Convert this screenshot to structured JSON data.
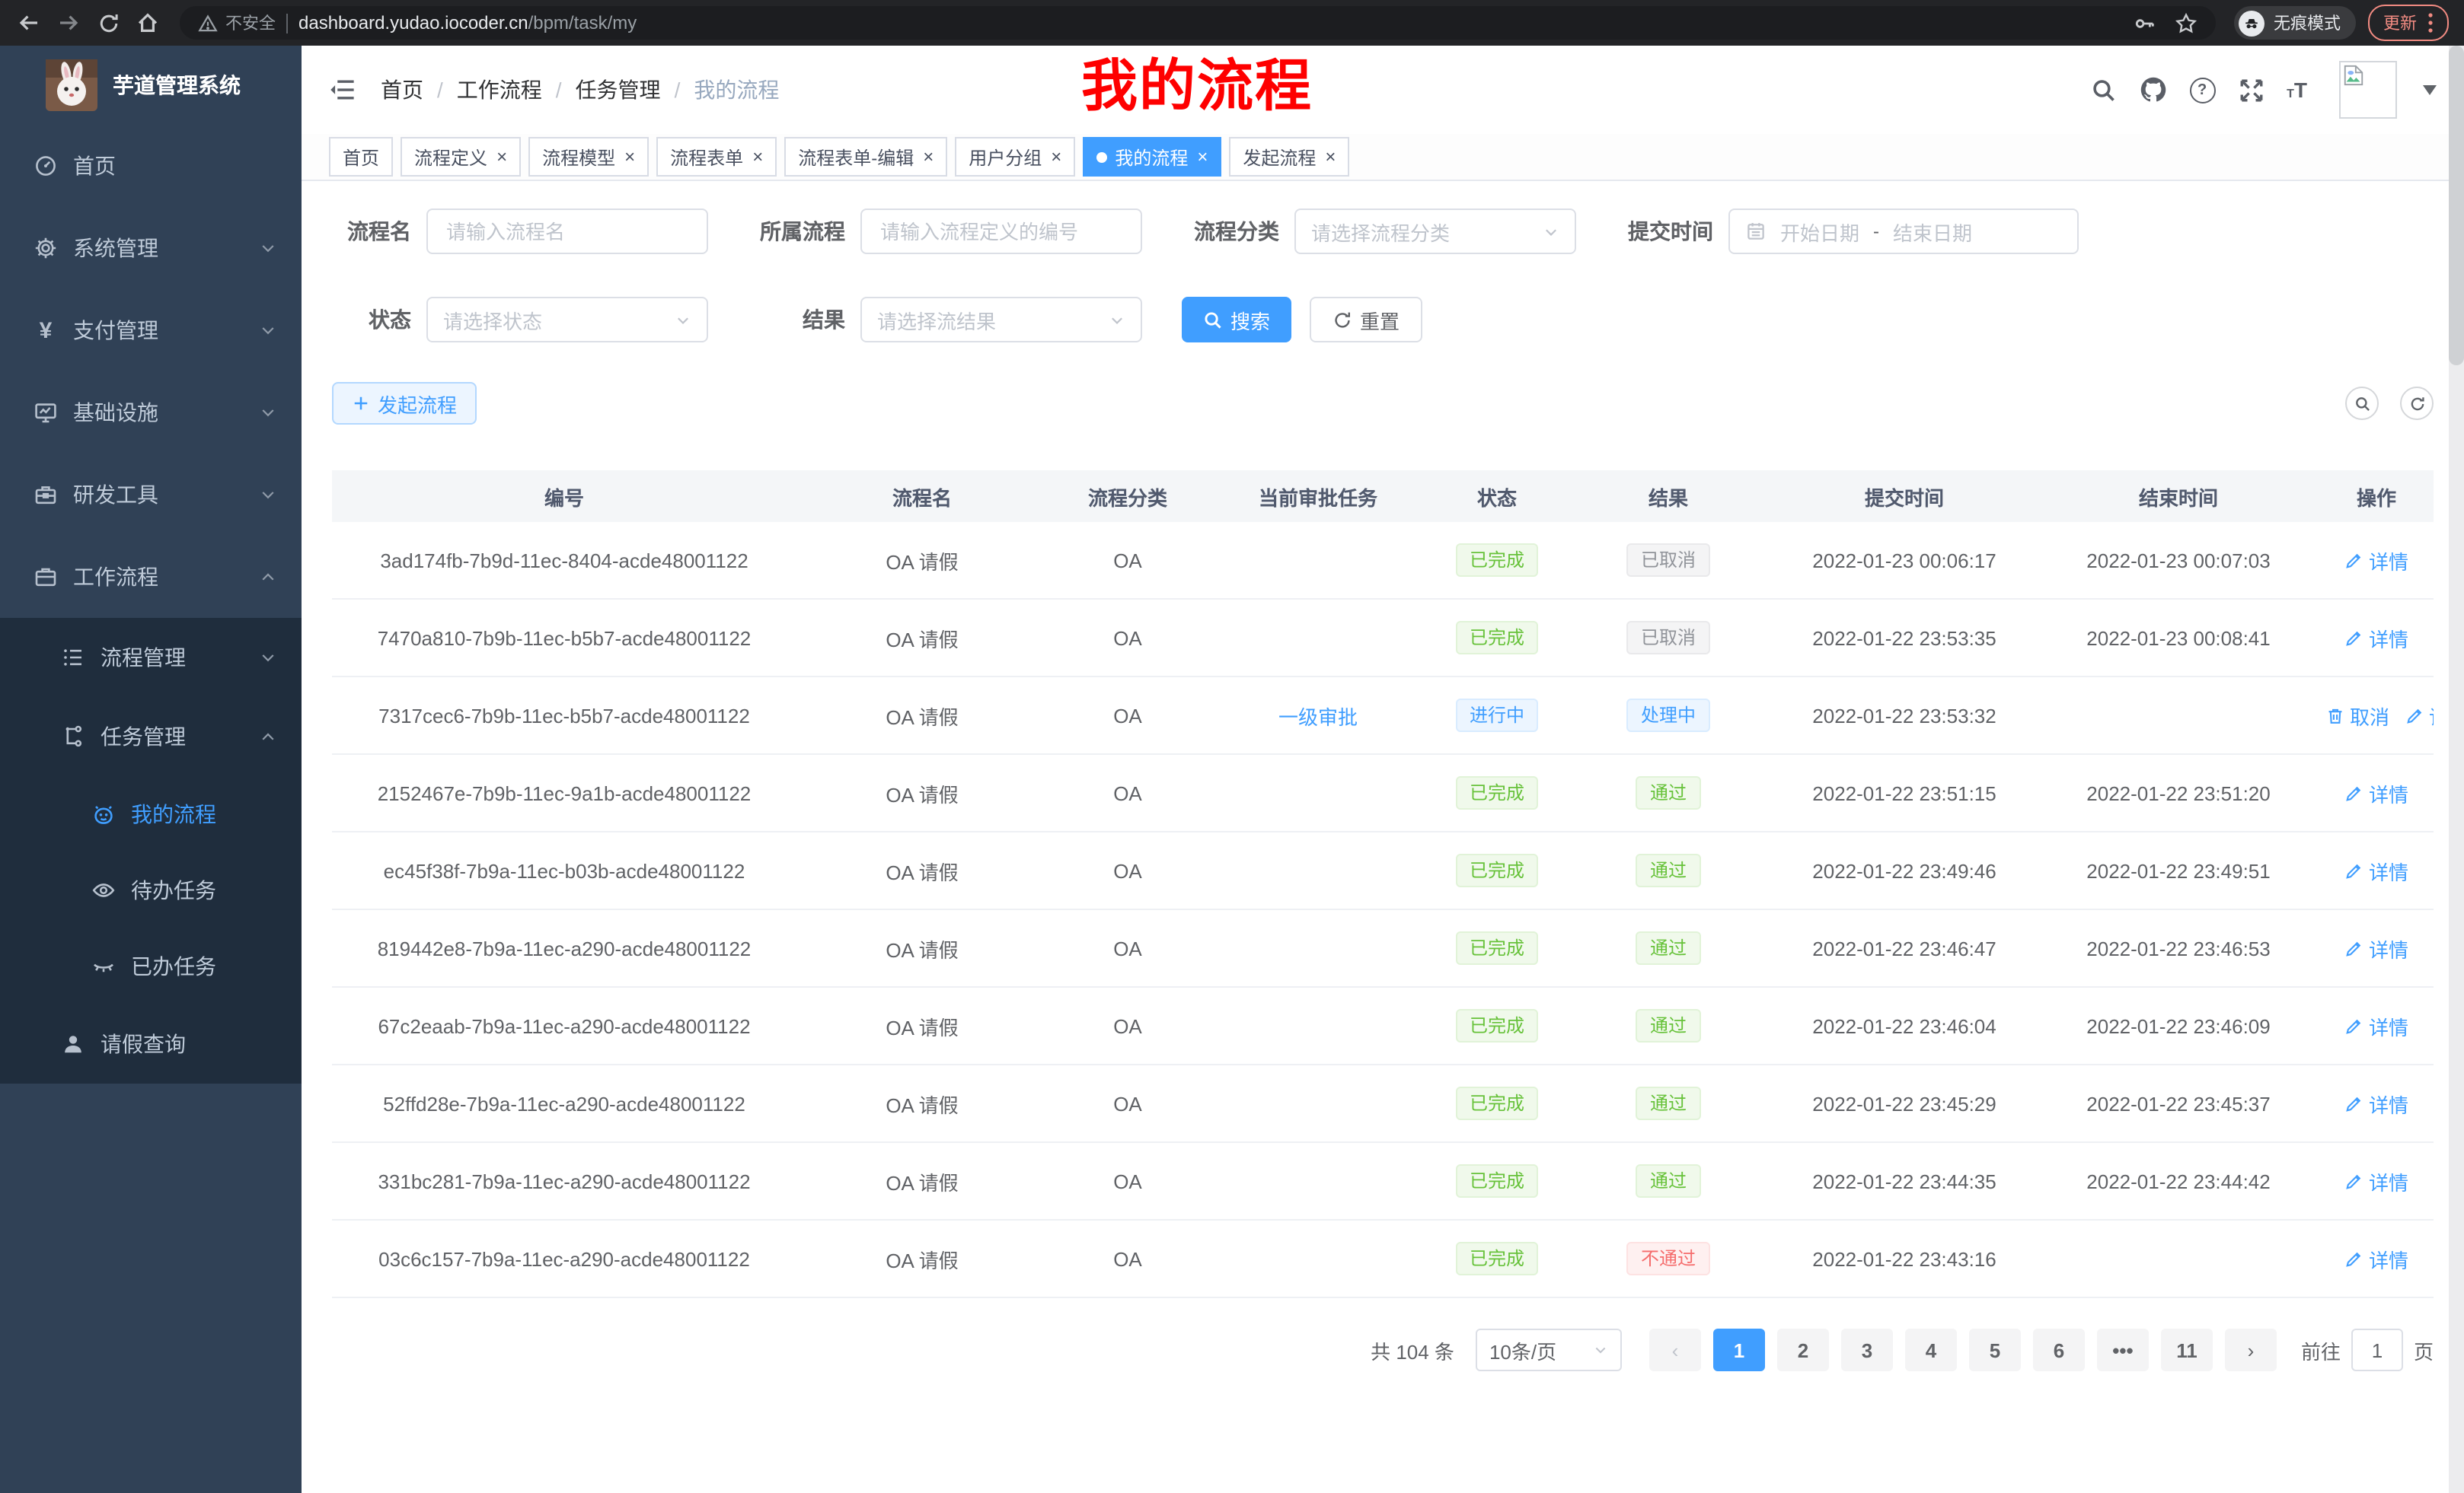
{
  "browser": {
    "security_label": "不安全",
    "url_domain": "dashboard.yudao.iocoder.cn",
    "url_path": "/bpm/task/my",
    "incognito_label": "无痕模式",
    "update_label": "更新"
  },
  "sidebar": {
    "logo_title": "芋道管理系统",
    "menu": [
      {
        "label": "首页",
        "icon": "dashboard"
      },
      {
        "label": "系统管理",
        "icon": "gear",
        "chevron": "down"
      },
      {
        "label": "支付管理",
        "icon": "yen",
        "chevron": "down"
      },
      {
        "label": "基础设施",
        "icon": "monitor",
        "chevron": "down"
      },
      {
        "label": "研发工具",
        "icon": "toolbox",
        "chevron": "down"
      },
      {
        "label": "工作流程",
        "icon": "briefcase",
        "chevron": "up",
        "children": [
          {
            "label": "流程管理",
            "icon": "list",
            "chevron": "down"
          },
          {
            "label": "任务管理",
            "icon": "flow",
            "chevron": "up",
            "children": [
              {
                "label": "我的流程",
                "icon": "robot",
                "active": true
              },
              {
                "label": "待办任务",
                "icon": "eye"
              },
              {
                "label": "已办任务",
                "icon": "eye-closed"
              }
            ]
          },
          {
            "label": "请假查询",
            "icon": "user"
          }
        ]
      }
    ]
  },
  "navbar": {
    "breadcrumb": [
      "首页",
      "工作流程",
      "任务管理",
      "我的流程"
    ],
    "annotation": "我的流程"
  },
  "tabs": [
    {
      "label": "首页",
      "closable": false,
      "active": false
    },
    {
      "label": "流程定义",
      "closable": true,
      "active": false
    },
    {
      "label": "流程模型",
      "closable": true,
      "active": false
    },
    {
      "label": "流程表单",
      "closable": true,
      "active": false
    },
    {
      "label": "流程表单-编辑",
      "closable": true,
      "active": false
    },
    {
      "label": "用户分组",
      "closable": true,
      "active": false
    },
    {
      "label": "我的流程",
      "closable": true,
      "active": true
    },
    {
      "label": "发起流程",
      "closable": true,
      "active": false
    }
  ],
  "filters": {
    "name": {
      "label": "流程名",
      "placeholder": "请输入流程名"
    },
    "definition": {
      "label": "所属流程",
      "placeholder": "请输入流程定义的编号"
    },
    "category": {
      "label": "流程分类",
      "placeholder": "请选择流程分类"
    },
    "submit_time": {
      "label": "提交时间",
      "start_placeholder": "开始日期",
      "separator": "-",
      "end_placeholder": "结束日期"
    },
    "status": {
      "label": "状态",
      "placeholder": "请选择状态"
    },
    "result": {
      "label": "结果",
      "placeholder": "请选择流结果"
    },
    "search_label": "搜索",
    "reset_label": "重置"
  },
  "toolbar": {
    "create_label": "发起流程"
  },
  "table": {
    "columns": [
      "编号",
      "流程名",
      "流程分类",
      "当前审批任务",
      "状态",
      "结果",
      "提交时间",
      "结束时间",
      "操作"
    ],
    "rows": [
      {
        "id": "3ad174fb-7b9d-11ec-8404-acde48001122",
        "name": "OA 请假",
        "category": "OA",
        "current_task": "",
        "status": {
          "label": "已完成",
          "type": "success"
        },
        "result": {
          "label": "已取消",
          "type": "info"
        },
        "submit_time": "2022-01-23 00:06:17",
        "end_time": "2022-01-23 00:07:03",
        "actions": [
          {
            "label": "详情",
            "icon": "edit"
          }
        ]
      },
      {
        "id": "7470a810-7b9b-11ec-b5b7-acde48001122",
        "name": "OA 请假",
        "category": "OA",
        "current_task": "",
        "status": {
          "label": "已完成",
          "type": "success"
        },
        "result": {
          "label": "已取消",
          "type": "info"
        },
        "submit_time": "2022-01-22 23:53:35",
        "end_time": "2022-01-23 00:08:41",
        "actions": [
          {
            "label": "详情",
            "icon": "edit"
          }
        ]
      },
      {
        "id": "7317cec6-7b9b-11ec-b5b7-acde48001122",
        "name": "OA 请假",
        "category": "OA",
        "current_task": "一级审批",
        "status": {
          "label": "进行中",
          "type": "primary"
        },
        "result": {
          "label": "处理中",
          "type": "primary"
        },
        "submit_time": "2022-01-22 23:53:32",
        "end_time": "",
        "actions": [
          {
            "label": "取消",
            "icon": "delete"
          },
          {
            "label": "详情",
            "icon": "edit"
          }
        ]
      },
      {
        "id": "2152467e-7b9b-11ec-9a1b-acde48001122",
        "name": "OA 请假",
        "category": "OA",
        "current_task": "",
        "status": {
          "label": "已完成",
          "type": "success"
        },
        "result": {
          "label": "通过",
          "type": "success"
        },
        "submit_time": "2022-01-22 23:51:15",
        "end_time": "2022-01-22 23:51:20",
        "actions": [
          {
            "label": "详情",
            "icon": "edit"
          }
        ]
      },
      {
        "id": "ec45f38f-7b9a-11ec-b03b-acde48001122",
        "name": "OA 请假",
        "category": "OA",
        "current_task": "",
        "status": {
          "label": "已完成",
          "type": "success"
        },
        "result": {
          "label": "通过",
          "type": "success"
        },
        "submit_time": "2022-01-22 23:49:46",
        "end_time": "2022-01-22 23:49:51",
        "actions": [
          {
            "label": "详情",
            "icon": "edit"
          }
        ]
      },
      {
        "id": "819442e8-7b9a-11ec-a290-acde48001122",
        "name": "OA 请假",
        "category": "OA",
        "current_task": "",
        "status": {
          "label": "已完成",
          "type": "success"
        },
        "result": {
          "label": "通过",
          "type": "success"
        },
        "submit_time": "2022-01-22 23:46:47",
        "end_time": "2022-01-22 23:46:53",
        "actions": [
          {
            "label": "详情",
            "icon": "edit"
          }
        ]
      },
      {
        "id": "67c2eaab-7b9a-11ec-a290-acde48001122",
        "name": "OA 请假",
        "category": "OA",
        "current_task": "",
        "status": {
          "label": "已完成",
          "type": "success"
        },
        "result": {
          "label": "通过",
          "type": "success"
        },
        "submit_time": "2022-01-22 23:46:04",
        "end_time": "2022-01-22 23:46:09",
        "actions": [
          {
            "label": "详情",
            "icon": "edit"
          }
        ]
      },
      {
        "id": "52ffd28e-7b9a-11ec-a290-acde48001122",
        "name": "OA 请假",
        "category": "OA",
        "current_task": "",
        "status": {
          "label": "已完成",
          "type": "success"
        },
        "result": {
          "label": "通过",
          "type": "success"
        },
        "submit_time": "2022-01-22 23:45:29",
        "end_time": "2022-01-22 23:45:37",
        "actions": [
          {
            "label": "详情",
            "icon": "edit"
          }
        ]
      },
      {
        "id": "331bc281-7b9a-11ec-a290-acde48001122",
        "name": "OA 请假",
        "category": "OA",
        "current_task": "",
        "status": {
          "label": "已完成",
          "type": "success"
        },
        "result": {
          "label": "通过",
          "type": "success"
        },
        "submit_time": "2022-01-22 23:44:35",
        "end_time": "2022-01-22 23:44:42",
        "actions": [
          {
            "label": "详情",
            "icon": "edit"
          }
        ]
      },
      {
        "id": "03c6c157-7b9a-11ec-a290-acde48001122",
        "name": "OA 请假",
        "category": "OA",
        "current_task": "",
        "status": {
          "label": "已完成",
          "type": "success"
        },
        "result": {
          "label": "不通过",
          "type": "danger"
        },
        "submit_time": "2022-01-22 23:43:16",
        "end_time": "",
        "actions": [
          {
            "label": "详情",
            "icon": "edit"
          }
        ]
      }
    ]
  },
  "pagination": {
    "total": "共 104 条",
    "page_size": "10条/页",
    "pages": [
      "1",
      "2",
      "3",
      "4",
      "5",
      "6",
      "•••",
      "11"
    ],
    "active_page": "1",
    "prev_icon": "‹",
    "next_icon": "›",
    "goto_label": "前往",
    "goto_value": "1",
    "unit_label": "页"
  }
}
